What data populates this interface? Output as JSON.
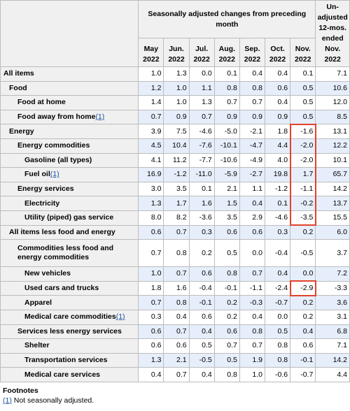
{
  "header": {
    "group_title": "Seasonally adjusted changes from preceding month",
    "unadjusted_title": "Un-adjusted 12-mos. ended Nov. 2022",
    "months": [
      {
        "m": "May",
        "y": "2022"
      },
      {
        "m": "Jun.",
        "y": "2022"
      },
      {
        "m": "Jul.",
        "y": "2022"
      },
      {
        "m": "Aug.",
        "y": "2022"
      },
      {
        "m": "Sep.",
        "y": "2022"
      },
      {
        "m": "Oct.",
        "y": "2022"
      },
      {
        "m": "Nov.",
        "y": "2022"
      }
    ]
  },
  "rows": [
    {
      "label": "All items",
      "level": 0,
      "vals": [
        "1.0",
        "1.3",
        "0.0",
        "0.1",
        "0.4",
        "0.4",
        "0.1",
        "7.1"
      ]
    },
    {
      "label": "Food",
      "level": 1,
      "vals": [
        "1.2",
        "1.0",
        "1.1",
        "0.8",
        "0.8",
        "0.6",
        "0.5",
        "10.6"
      ]
    },
    {
      "label": "Food at home",
      "level": 2,
      "vals": [
        "1.4",
        "1.0",
        "1.3",
        "0.7",
        "0.7",
        "0.4",
        "0.5",
        "12.0"
      ]
    },
    {
      "label": "Food away from home",
      "level": 2,
      "footnote": "(1)",
      "vals": [
        "0.7",
        "0.9",
        "0.7",
        "0.9",
        "0.9",
        "0.9",
        "0.5",
        "8.5"
      ]
    },
    {
      "label": "Energy",
      "level": 1,
      "vals": [
        "3.9",
        "7.5",
        "-4.6",
        "-5.0",
        "-2.1",
        "1.8",
        "-1.6",
        "13.1"
      ]
    },
    {
      "label": "Energy commodities",
      "level": 2,
      "vals": [
        "4.5",
        "10.4",
        "-7.6",
        "-10.1",
        "-4.7",
        "4.4",
        "-2.0",
        "12.2"
      ]
    },
    {
      "label": "Gasoline (all types)",
      "level": 3,
      "vals": [
        "4.1",
        "11.2",
        "-7.7",
        "-10.6",
        "-4.9",
        "4.0",
        "-2.0",
        "10.1"
      ]
    },
    {
      "label": "Fuel oil",
      "level": 3,
      "footnote": "(1)",
      "vals": [
        "16.9",
        "-1.2",
        "-11.0",
        "-5.9",
        "-2.7",
        "19.8",
        "1.7",
        "65.7"
      ]
    },
    {
      "label": "Energy services",
      "level": 2,
      "vals": [
        "3.0",
        "3.5",
        "0.1",
        "2.1",
        "1.1",
        "-1.2",
        "-1.1",
        "14.2"
      ]
    },
    {
      "label": "Electricity",
      "level": 3,
      "vals": [
        "1.3",
        "1.7",
        "1.6",
        "1.5",
        "0.4",
        "0.1",
        "-0.2",
        "13.7"
      ]
    },
    {
      "label": "Utility (piped) gas service",
      "level": 3,
      "vals": [
        "8.0",
        "8.2",
        "-3.6",
        "3.5",
        "2.9",
        "-4.6",
        "-3.5",
        "15.5"
      ]
    },
    {
      "label": "All items less food and energy",
      "level": 1,
      "vals": [
        "0.6",
        "0.7",
        "0.3",
        "0.6",
        "0.6",
        "0.3",
        "0.2",
        "6.0"
      ]
    },
    {
      "label": "Commodities less food and energy commodities",
      "level": 2,
      "two": true,
      "vals": [
        "0.7",
        "0.8",
        "0.2",
        "0.5",
        "0.0",
        "-0.4",
        "-0.5",
        "3.7"
      ]
    },
    {
      "label": "New vehicles",
      "level": 3,
      "vals": [
        "1.0",
        "0.7",
        "0.6",
        "0.8",
        "0.7",
        "0.4",
        "0.0",
        "7.2"
      ]
    },
    {
      "label": "Used cars and trucks",
      "level": 3,
      "vals": [
        "1.8",
        "1.6",
        "-0.4",
        "-0.1",
        "-1.1",
        "-2.4",
        "-2.9",
        "-3.3"
      ]
    },
    {
      "label": "Apparel",
      "level": 3,
      "vals": [
        "0.7",
        "0.8",
        "-0.1",
        "0.2",
        "-0.3",
        "-0.7",
        "0.2",
        "3.6"
      ]
    },
    {
      "label": "Medical care commodities",
      "level": 3,
      "footnote": "(1)",
      "vals": [
        "0.3",
        "0.4",
        "0.6",
        "0.2",
        "0.4",
        "0.0",
        "0.2",
        "3.1"
      ]
    },
    {
      "label": "Services less energy services",
      "level": 2,
      "vals": [
        "0.6",
        "0.7",
        "0.4",
        "0.6",
        "0.8",
        "0.5",
        "0.4",
        "6.8"
      ]
    },
    {
      "label": "Shelter",
      "level": 3,
      "vals": [
        "0.6",
        "0.6",
        "0.5",
        "0.7",
        "0.7",
        "0.8",
        "0.6",
        "7.1"
      ]
    },
    {
      "label": "Transportation services",
      "level": 3,
      "vals": [
        "1.3",
        "2.1",
        "-0.5",
        "0.5",
        "1.9",
        "0.8",
        "-0.1",
        "14.2"
      ]
    },
    {
      "label": "Medical care services",
      "level": 3,
      "vals": [
        "0.4",
        "0.7",
        "0.4",
        "0.8",
        "1.0",
        "-0.6",
        "-0.7",
        "4.4"
      ]
    }
  ],
  "footnotes": {
    "title": "Footnotes",
    "items": [
      {
        "mark": "(1)",
        "text": " Not seasonally adjusted."
      }
    ]
  },
  "highlight_color": "#e1432b"
}
